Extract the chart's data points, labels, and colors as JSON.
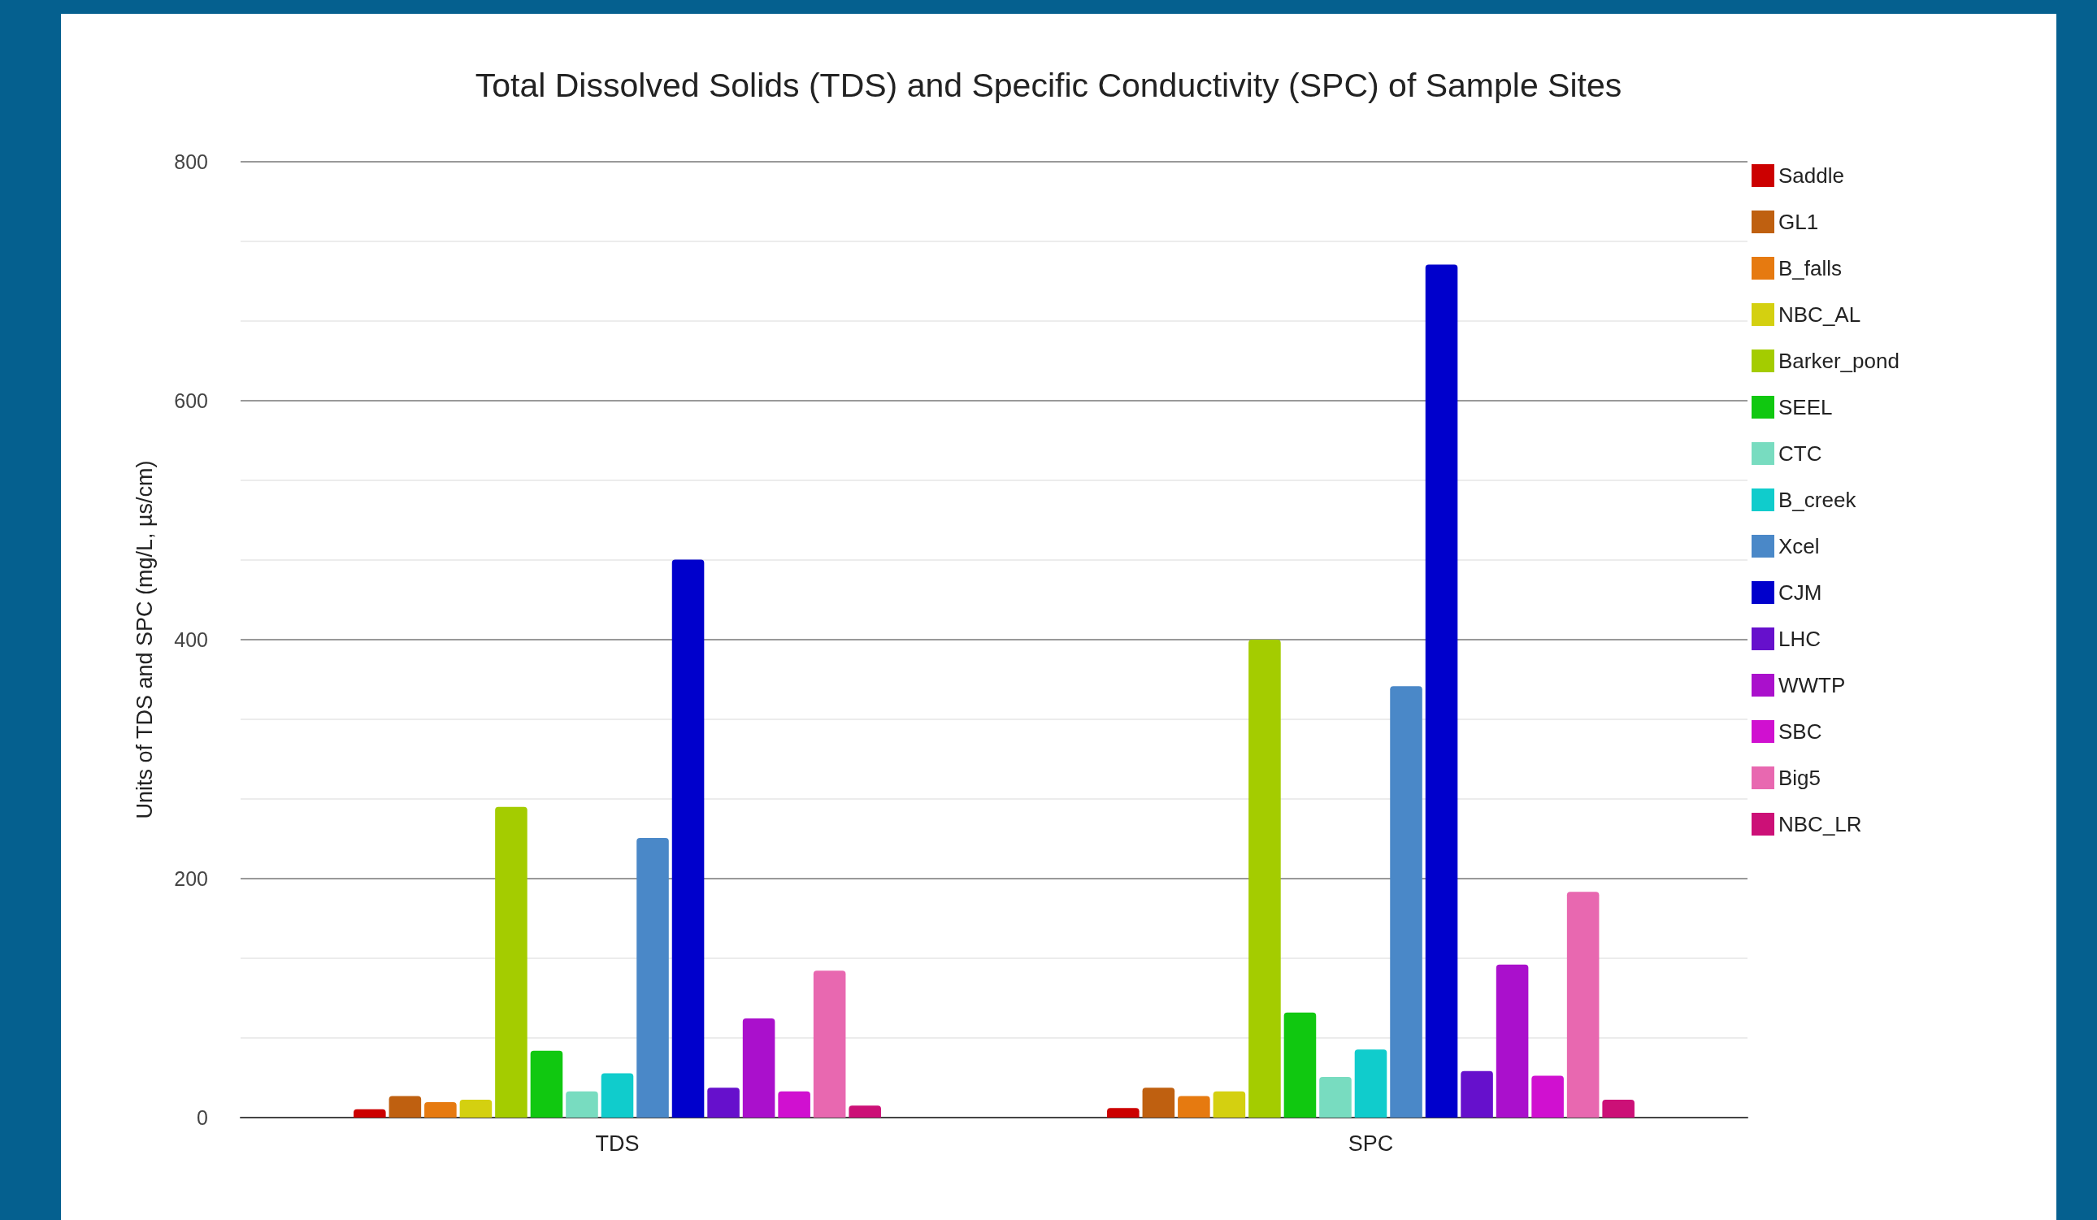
{
  "chart_data": {
    "type": "bar",
    "title": "Total Dissolved Solids (TDS) and Specific Conductivity (SPC) of Sample Sites",
    "ylabel": "Units of TDS and SPC (mg/L, µs/cm)",
    "categories": [
      "TDS",
      "SPC"
    ],
    "series": [
      {
        "name": "Saddle",
        "color": "#cc0000",
        "values": [
          7,
          8
        ]
      },
      {
        "name": "GL1",
        "color": "#bf6010",
        "values": [
          18,
          25
        ]
      },
      {
        "name": "B_falls",
        "color": "#e67a10",
        "values": [
          13,
          18
        ]
      },
      {
        "name": "NBC_AL",
        "color": "#d4d010",
        "values": [
          15,
          22
        ]
      },
      {
        "name": "Barker_pond",
        "color": "#a4cc00",
        "values": [
          260,
          400
        ]
      },
      {
        "name": "SEEL",
        "color": "#10c810",
        "values": [
          56,
          88
        ]
      },
      {
        "name": "CTC",
        "color": "#78dcc0",
        "values": [
          22,
          34
        ]
      },
      {
        "name": "B_creek",
        "color": "#10cccc",
        "values": [
          37,
          57
        ]
      },
      {
        "name": "Xcel",
        "color": "#4a88c8",
        "values": [
          234,
          361
        ]
      },
      {
        "name": "CJM",
        "color": "#0000cc",
        "values": [
          467,
          714
        ]
      },
      {
        "name": "LHC",
        "color": "#6610cc",
        "values": [
          25,
          39
        ]
      },
      {
        "name": "WWTP",
        "color": "#aa10cc",
        "values": [
          83,
          128
        ]
      },
      {
        "name": "SBC",
        "color": "#d010d0",
        "values": [
          22,
          35
        ]
      },
      {
        "name": "Big5",
        "color": "#e868b0",
        "values": [
          123,
          189
        ]
      },
      {
        "name": "NBC_LR",
        "color": "#cc1077",
        "values": [
          10,
          15
        ]
      }
    ],
    "ylim": [
      0,
      800
    ],
    "yticks": [
      0,
      200,
      400,
      600,
      800
    ],
    "grid": "y",
    "legend": "right"
  }
}
